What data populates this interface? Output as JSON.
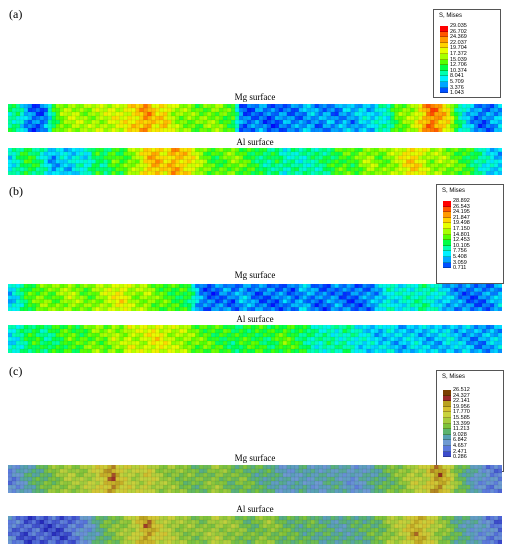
{
  "legend_title": "S, Mises",
  "surface_labels": {
    "mg": "Mg surface",
    "al": "Al surface"
  },
  "panels": [
    {
      "label": "(a)",
      "legend_values": [
        "29.035",
        "26.702",
        "24.369",
        "22.037",
        "19.704",
        "17.372",
        "15.039",
        "12.706",
        "10.374",
        "8.041",
        "5.709",
        "3.376",
        "1.043"
      ],
      "legend_colors": [
        "#ff0000",
        "#ff5500",
        "#ff9900",
        "#ffd200",
        "#e6ff00",
        "#a6ff00",
        "#55ff00",
        "#00ff44",
        "#00ffb0",
        "#00f0ff",
        "#00a6ff",
        "#0050ff",
        "#0000ff"
      ],
      "mg_profile": [
        0.35,
        0.35,
        0.15,
        0.1,
        0.1,
        0.4,
        0.55,
        0.6,
        0.6,
        0.55,
        0.6,
        0.6,
        0.65,
        0.65,
        0.7,
        0.75,
        0.85,
        0.7,
        0.75,
        0.6,
        0.55,
        0.55,
        0.5,
        0.55,
        0.55,
        0.5,
        0.45,
        0.1,
        0.1,
        0.15,
        0.1,
        0.1,
        0.15,
        0.12,
        0.15,
        0.2,
        0.12,
        0.18,
        0.12,
        0.2,
        0.15,
        0.25,
        0.2,
        0.3,
        0.3,
        0.5,
        0.55,
        0.6,
        0.75,
        0.9,
        0.8,
        0.7,
        0.4,
        0.25,
        0.15,
        0.1,
        0.15,
        0.2
      ],
      "al_profile": [
        0.25,
        0.35,
        0.45,
        0.4,
        0.3,
        0.15,
        0.25,
        0.2,
        0.3,
        0.25,
        0.45,
        0.35,
        0.5,
        0.45,
        0.55,
        0.6,
        0.75,
        0.8,
        0.7,
        0.8,
        0.75,
        0.7,
        0.6,
        0.5,
        0.45,
        0.5,
        0.55,
        0.5,
        0.45,
        0.4,
        0.35,
        0.4,
        0.3,
        0.35,
        0.3,
        0.35,
        0.35,
        0.4,
        0.45,
        0.5,
        0.45,
        0.55,
        0.6,
        0.5,
        0.55,
        0.6,
        0.7,
        0.75,
        0.65,
        0.55,
        0.6,
        0.55,
        0.5,
        0.45,
        0.4,
        0.3,
        0.25,
        0.2
      ]
    },
    {
      "label": "(b)",
      "legend_values": [
        "28.892",
        "26.543",
        "24.195",
        "21.847",
        "19.498",
        "17.150",
        "14.801",
        "12.453",
        "10.105",
        "7.756",
        "5.408",
        "3.059",
        "0.711"
      ],
      "legend_colors": [
        "#ff0000",
        "#ff5500",
        "#ff9900",
        "#ffd200",
        "#e6ff00",
        "#a6ff00",
        "#55ff00",
        "#00ff44",
        "#00ffb0",
        "#00f0ff",
        "#00a6ff",
        "#0050ff",
        "#0000ff"
      ],
      "mg_profile": [
        0.2,
        0.3,
        0.45,
        0.5,
        0.55,
        0.5,
        0.55,
        0.6,
        0.55,
        0.5,
        0.55,
        0.6,
        0.65,
        0.7,
        0.6,
        0.55,
        0.6,
        0.5,
        0.5,
        0.45,
        0.45,
        0.4,
        0.15,
        0.1,
        0.1,
        0.15,
        0.1,
        0.2,
        0.15,
        0.1,
        0.12,
        0.1,
        0.15,
        0.1,
        0.2,
        0.15,
        0.1,
        0.12,
        0.15,
        0.1,
        0.1,
        0.12,
        0.15,
        0.2,
        0.3,
        0.25,
        0.3,
        0.3,
        0.35,
        0.3,
        0.25,
        0.2,
        0.15,
        0.12,
        0.1,
        0.12,
        0.15,
        0.2
      ],
      "al_profile": [
        0.25,
        0.3,
        0.4,
        0.45,
        0.35,
        0.4,
        0.45,
        0.5,
        0.45,
        0.5,
        0.55,
        0.5,
        0.6,
        0.55,
        0.65,
        0.6,
        0.65,
        0.7,
        0.65,
        0.6,
        0.6,
        0.55,
        0.5,
        0.5,
        0.45,
        0.45,
        0.4,
        0.45,
        0.45,
        0.45,
        0.4,
        0.45,
        0.5,
        0.45,
        0.4,
        0.35,
        0.3,
        0.35,
        0.3,
        0.35,
        0.3,
        0.25,
        0.25,
        0.2,
        0.25,
        0.2,
        0.2,
        0.25,
        0.2,
        0.2,
        0.2,
        0.25,
        0.2,
        0.2,
        0.15,
        0.15,
        0.2,
        0.2
      ]
    },
    {
      "label": "(c)",
      "legend_values": [
        "26.512",
        "24.327",
        "22.141",
        "19.956",
        "17.770",
        "15.585",
        "13.399",
        "11.213",
        "9.028",
        "6.842",
        "4.657",
        "2.471",
        "0.286"
      ],
      "legend_colors": [
        "#7b3f00",
        "#9a2a2a",
        "#b9a020",
        "#d4c030",
        "#c8d23c",
        "#a6cc3c",
        "#7cc23a",
        "#5ab46e",
        "#56a0b4",
        "#6e9ad2",
        "#5a78dc",
        "#3c4ccc",
        "#1a1ab4"
      ],
      "mg_profile": [
        0.2,
        0.25,
        0.35,
        0.4,
        0.45,
        0.5,
        0.55,
        0.6,
        0.55,
        0.6,
        0.65,
        0.75,
        0.85,
        0.7,
        0.65,
        0.6,
        0.7,
        0.6,
        0.55,
        0.55,
        0.5,
        0.5,
        0.45,
        0.5,
        0.55,
        0.5,
        0.45,
        0.5,
        0.45,
        0.4,
        0.4,
        0.35,
        0.3,
        0.3,
        0.35,
        0.3,
        0.3,
        0.35,
        0.35,
        0.3,
        0.25,
        0.3,
        0.35,
        0.4,
        0.45,
        0.5,
        0.55,
        0.65,
        0.6,
        0.75,
        0.85,
        0.7,
        0.5,
        0.4,
        0.3,
        0.25,
        0.2,
        0.2
      ],
      "al_profile": [
        0.2,
        0.15,
        0.1,
        0.15,
        0.1,
        0.12,
        0.1,
        0.15,
        0.2,
        0.25,
        0.35,
        0.45,
        0.5,
        0.55,
        0.6,
        0.7,
        0.85,
        0.7,
        0.65,
        0.6,
        0.55,
        0.55,
        0.5,
        0.55,
        0.6,
        0.55,
        0.55,
        0.5,
        0.45,
        0.5,
        0.55,
        0.5,
        0.45,
        0.45,
        0.4,
        0.45,
        0.4,
        0.4,
        0.35,
        0.35,
        0.4,
        0.4,
        0.45,
        0.45,
        0.55,
        0.6,
        0.65,
        0.8,
        0.75,
        0.65,
        0.55,
        0.5,
        0.4,
        0.35,
        0.3,
        0.25,
        0.2,
        0.15
      ]
    }
  ]
}
